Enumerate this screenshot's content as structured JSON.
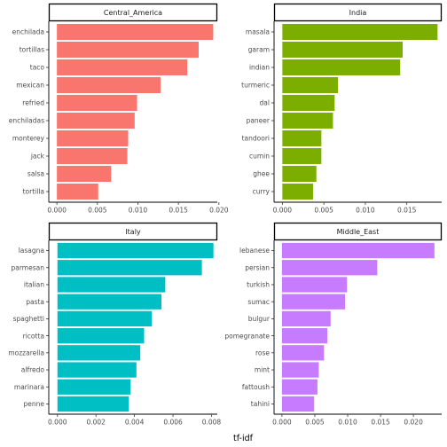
{
  "chart_data": {
    "type": "bar",
    "orientation": "horizontal",
    "facet_layout": "2x2",
    "xlabel": "tf-idf",
    "ylabel": "",
    "grid": false,
    "legend": "none",
    "panels": [
      {
        "title": "Central_America",
        "color": "#F8766D",
        "categories": [
          "enchilada",
          "tortillas",
          "taco",
          "mexican",
          "refried",
          "enchiladas",
          "monterey",
          "jack",
          "salsa",
          "tortilla"
        ],
        "values": [
          0.0193,
          0.0175,
          0.0161,
          0.0128,
          0.0099,
          0.0096,
          0.0088,
          0.0087,
          0.0067,
          0.0051
        ],
        "xlim": [
          -0.001,
          0.0198
        ],
        "xticks": [
          0.0,
          0.005,
          0.01,
          0.015,
          0.02
        ],
        "xtick_labels": [
          "0.000",
          "0.005",
          "0.010",
          "0.015",
          "0.020"
        ]
      },
      {
        "title": "India",
        "color": "#7CAE00",
        "categories": [
          "masala",
          "garam",
          "indian",
          "turmeric",
          "dal",
          "paneer",
          "tandoori",
          "cumin",
          "ghee",
          "curry"
        ],
        "values": [
          0.0187,
          0.0145,
          0.0142,
          0.0067,
          0.0063,
          0.0061,
          0.0047,
          0.0047,
          0.0041,
          0.0037
        ],
        "xlim": [
          -0.001,
          0.0192
        ],
        "xticks": [
          0.0,
          0.005,
          0.01,
          0.015
        ],
        "xtick_labels": [
          "0.000",
          "0.005",
          "0.010",
          "0.015"
        ]
      },
      {
        "title": "Italy",
        "color": "#00BFC4",
        "categories": [
          "lasagna",
          "parmesan",
          "italian",
          "pasta",
          "spaghetti",
          "ricotta",
          "mozzarella",
          "alfredo",
          "marinara",
          "penne"
        ],
        "values": [
          0.0081,
          0.0075,
          0.0056,
          0.0054,
          0.0049,
          0.0045,
          0.0043,
          0.0041,
          0.0038,
          0.0037
        ],
        "xlim": [
          -0.00045,
          0.0083
        ],
        "xticks": [
          0.0,
          0.002,
          0.004,
          0.006,
          0.008
        ],
        "xtick_labels": [
          "0.000",
          "0.002",
          "0.004",
          "0.006",
          "0.008"
        ]
      },
      {
        "title": "Middle_East",
        "color": "#C77CFF",
        "categories": [
          "lebanese",
          "persian",
          "turkish",
          "sumac",
          "bulgur",
          "pomegranate",
          "rose",
          "mint",
          "fattoush",
          "tahini"
        ],
        "values": [
          0.0232,
          0.0145,
          0.0099,
          0.0096,
          0.0074,
          0.0069,
          0.0064,
          0.0056,
          0.0054,
          0.0049
        ],
        "xlim": [
          -0.0012,
          0.0243
        ],
        "xticks": [
          0.0,
          0.005,
          0.01,
          0.015,
          0.02
        ],
        "xtick_labels": [
          "0.000",
          "0.005",
          "0.010",
          "0.015",
          "0.020"
        ]
      }
    ]
  }
}
